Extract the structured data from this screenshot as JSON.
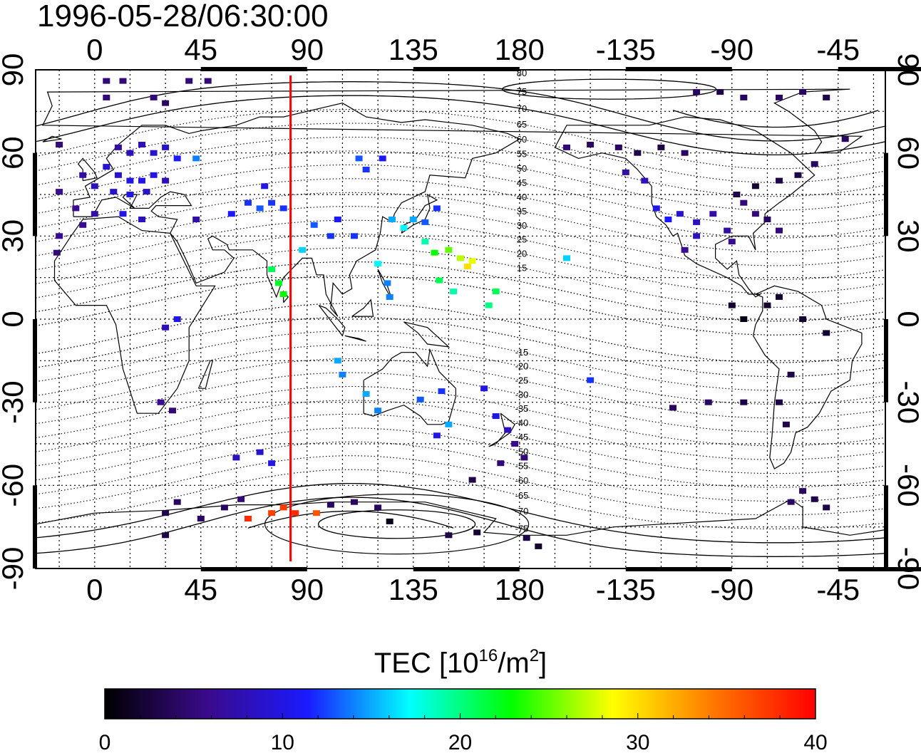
{
  "title": "1996-05-28/06:30:00",
  "colorbar": {
    "title_text": "TEC  [10",
    "title_sup1": "16",
    "title_mid": "/m",
    "title_sup2": "2",
    "title_end": "]",
    "min": 0,
    "max": 40,
    "ticks": [
      "0",
      "10",
      "20",
      "30",
      "40"
    ],
    "stops": [
      "#000000",
      "#3a0a8a",
      "#1a1aff",
      "#00ffff",
      "#00ff00",
      "#ffff00",
      "#ff7700",
      "#ff0000"
    ]
  },
  "map": {
    "lon_ticks_top": [
      "0",
      "45",
      "90",
      "135",
      "180",
      "-135",
      "-90",
      "-45"
    ],
    "lon_ticks_bottom": [
      "0",
      "45",
      "90",
      "135",
      "180",
      "-135",
      "-90",
      "-45"
    ],
    "lat_ticks_left": [
      "90",
      "60",
      "30",
      "0",
      "-30",
      "-60",
      "-90"
    ],
    "lat_ticks_right": [
      "90",
      "60",
      "30",
      "0",
      "-30",
      "-60",
      "-90"
    ],
    "marker_longitude": 83,
    "marker_color": "#ff0000",
    "magnetic_latitude_labels": [
      "80",
      "75",
      "70",
      "65",
      "60",
      "55",
      "50",
      "45",
      "40",
      "35",
      "30",
      "25",
      "20",
      "15",
      "-15",
      "-20",
      "-25",
      "-30",
      "-35",
      "-40",
      "-45",
      "-50",
      "-55",
      "-60",
      "-65",
      "-70",
      "-75"
    ]
  },
  "chart_data": {
    "type": "scatter",
    "title": "1996-05-28/06:30:00",
    "xlabel": "",
    "ylabel": "",
    "xlim": [
      -25,
      335
    ],
    "ylim": [
      -90,
      90
    ],
    "colorbar_label": "TEC [10^16/m^2]",
    "colorbar_range": [
      0,
      40
    ],
    "points": [
      {
        "lon": 5,
        "lat": 86,
        "tec": 5
      },
      {
        "lon": 12,
        "lat": 86,
        "tec": 5
      },
      {
        "lon": 40,
        "lat": 86,
        "tec": 5
      },
      {
        "lon": 48,
        "lat": 86,
        "tec": 5
      },
      {
        "lon": 5,
        "lat": 80,
        "tec": 5
      },
      {
        "lon": 25,
        "lat": 80,
        "tec": 5
      },
      {
        "lon": 30,
        "lat": 78,
        "tec": 4
      },
      {
        "lon": -15,
        "lat": 63,
        "tec": 5
      },
      {
        "lon": 10,
        "lat": 62,
        "tec": 7
      },
      {
        "lon": 15,
        "lat": 60,
        "tec": 8
      },
      {
        "lon": 20,
        "lat": 63,
        "tec": 8
      },
      {
        "lon": 25,
        "lat": 60,
        "tec": 9
      },
      {
        "lon": 30,
        "lat": 62,
        "tec": 9
      },
      {
        "lon": 35,
        "lat": 58,
        "tec": 11
      },
      {
        "lon": 43,
        "lat": 58,
        "tec": 14
      },
      {
        "lon": 5,
        "lat": 55,
        "tec": 9
      },
      {
        "lon": 10,
        "lat": 52,
        "tec": 9
      },
      {
        "lon": 15,
        "lat": 50,
        "tec": 10
      },
      {
        "lon": 20,
        "lat": 50,
        "tec": 10
      },
      {
        "lon": 25,
        "lat": 52,
        "tec": 10
      },
      {
        "lon": 30,
        "lat": 50,
        "tec": 8
      },
      {
        "lon": -5,
        "lat": 52,
        "tec": 7
      },
      {
        "lon": 0,
        "lat": 48,
        "tec": 8
      },
      {
        "lon": 8,
        "lat": 46,
        "tec": 9
      },
      {
        "lon": 15,
        "lat": 45,
        "tec": 10
      },
      {
        "lon": 22,
        "lat": 46,
        "tec": 9
      },
      {
        "lon": -8,
        "lat": 40,
        "tec": 6
      },
      {
        "lon": 0,
        "lat": 38,
        "tec": 7
      },
      {
        "lon": 12,
        "lat": 38,
        "tec": 10
      },
      {
        "lon": 20,
        "lat": 36,
        "tec": 8
      },
      {
        "lon": -15,
        "lat": 30,
        "tec": 6
      },
      {
        "lon": -16,
        "lat": 24,
        "tec": 5
      },
      {
        "lon": -5,
        "lat": 34,
        "tec": 6
      },
      {
        "lon": 43,
        "lat": 36,
        "tec": 7
      },
      {
        "lon": 58,
        "lat": 38,
        "tec": 11
      },
      {
        "lon": 65,
        "lat": 42,
        "tec": 12
      },
      {
        "lon": 70,
        "lat": 40,
        "tec": 13
      },
      {
        "lon": 75,
        "lat": 42,
        "tec": 12
      },
      {
        "lon": 80,
        "lat": 40,
        "tec": 12
      },
      {
        "lon": 72,
        "lat": 48,
        "tec": 10
      },
      {
        "lon": 75,
        "lat": 18,
        "tec": 21
      },
      {
        "lon": 78,
        "lat": 13,
        "tec": 22
      },
      {
        "lon": 80,
        "lat": 9,
        "tec": 23
      },
      {
        "lon": 88,
        "lat": 25,
        "tec": 16
      },
      {
        "lon": 93,
        "lat": 34,
        "tec": 13
      },
      {
        "lon": 100,
        "lat": 30,
        "tec": 12
      },
      {
        "lon": 103,
        "lat": 36,
        "tec": 11
      },
      {
        "lon": 112,
        "lat": 58,
        "tec": 13
      },
      {
        "lon": 115,
        "lat": 54,
        "tec": 12
      },
      {
        "lon": 122,
        "lat": 58,
        "tec": 11
      },
      {
        "lon": 126,
        "lat": 36,
        "tec": 15
      },
      {
        "lon": 131,
        "lat": 33,
        "tec": 17
      },
      {
        "lon": 135,
        "lat": 36,
        "tec": 15
      },
      {
        "lon": 140,
        "lat": 35,
        "tec": 13
      },
      {
        "lon": 145,
        "lat": 40,
        "tec": 12
      },
      {
        "lon": 140,
        "lat": 28,
        "tec": 19
      },
      {
        "lon": 144,
        "lat": 24,
        "tec": 23
      },
      {
        "lon": 150,
        "lat": 25,
        "tec": 25
      },
      {
        "lon": 155,
        "lat": 22,
        "tec": 27
      },
      {
        "lon": 158,
        "lat": 19,
        "tec": 30
      },
      {
        "lon": 160,
        "lat": 21,
        "tec": 28
      },
      {
        "lon": 146,
        "lat": 14,
        "tec": 21
      },
      {
        "lon": 152,
        "lat": 10,
        "tec": 19
      },
      {
        "lon": 170,
        "lat": 10,
        "tec": 21
      },
      {
        "lon": 167,
        "lat": 5,
        "tec": 20
      },
      {
        "lon": 120,
        "lat": 20,
        "tec": 17
      },
      {
        "lon": 124,
        "lat": 13,
        "tec": 14
      },
      {
        "lon": 125,
        "lat": 8,
        "tec": 14
      },
      {
        "lon": 110,
        "lat": 30,
        "tec": 12
      },
      {
        "lon": 103,
        "lat": -15,
        "tec": 15
      },
      {
        "lon": 105,
        "lat": -20,
        "tec": 14
      },
      {
        "lon": 115,
        "lat": -27,
        "tec": 15
      },
      {
        "lon": 120,
        "lat": -33,
        "tec": 14
      },
      {
        "lon": 138,
        "lat": -29,
        "tec": 13
      },
      {
        "lon": 147,
        "lat": -26,
        "tec": 12
      },
      {
        "lon": 150,
        "lat": -38,
        "tec": 15
      },
      {
        "lon": 145,
        "lat": -42,
        "tec": 10
      },
      {
        "lon": 165,
        "lat": -25,
        "tec": 10
      },
      {
        "lon": 170,
        "lat": -35,
        "tec": 10
      },
      {
        "lon": 175,
        "lat": -40,
        "tec": 8
      },
      {
        "lon": 178,
        "lat": -45,
        "tec": 6
      },
      {
        "lon": 182,
        "lat": -50,
        "tec": 5
      },
      {
        "lon": 172,
        "lat": -52,
        "tec": 5
      },
      {
        "lon": 160,
        "lat": -58,
        "tec": 3
      },
      {
        "lon": 210,
        "lat": -22,
        "tec": 12
      },
      {
        "lon": 200,
        "lat": 22,
        "tec": 16
      },
      {
        "lon": 35,
        "lat": 0,
        "tec": 10
      },
      {
        "lon": 30,
        "lat": -3,
        "tec": 8
      },
      {
        "lon": 28,
        "lat": -30,
        "tec": 6
      },
      {
        "lon": 33,
        "lat": -33,
        "tec": 5
      },
      {
        "lon": 60,
        "lat": -50,
        "tec": 8
      },
      {
        "lon": 70,
        "lat": -48,
        "tec": 9
      },
      {
        "lon": 75,
        "lat": -52,
        "tec": 10
      },
      {
        "lon": 65,
        "lat": -72,
        "tec": 38
      },
      {
        "lon": 75,
        "lat": -70,
        "tec": 37
      },
      {
        "lon": 80,
        "lat": -68,
        "tec": 37
      },
      {
        "lon": 85,
        "lat": -70,
        "tec": 38
      },
      {
        "lon": 94,
        "lat": -70,
        "tec": 36
      },
      {
        "lon": 110,
        "lat": -66,
        "tec": 4
      },
      {
        "lon": 120,
        "lat": -68,
        "tec": 4
      },
      {
        "lon": 125,
        "lat": -73,
        "tec": 1
      },
      {
        "lon": 150,
        "lat": -78,
        "tec": 3
      },
      {
        "lon": 162,
        "lat": -77,
        "tec": 2
      },
      {
        "lon": 183,
        "lat": -79,
        "tec": 3
      },
      {
        "lon": 188,
        "lat": -82,
        "tec": 2
      },
      {
        "lon": 35,
        "lat": -66,
        "tec": 4
      },
      {
        "lon": 30,
        "lat": -70,
        "tec": 3
      },
      {
        "lon": 45,
        "lat": -72,
        "tec": 4
      },
      {
        "lon": 55,
        "lat": -68,
        "tec": 4
      },
      {
        "lon": 30,
        "lat": -78,
        "tec": 3
      },
      {
        "lon": 62,
        "lat": -65,
        "tec": 5
      },
      {
        "lon": 225,
        "lat": 53,
        "tec": 7
      },
      {
        "lon": 233,
        "lat": 50,
        "tec": 8
      },
      {
        "lon": 238,
        "lat": 40,
        "tec": 10
      },
      {
        "lon": 243,
        "lat": 36,
        "tec": 11
      },
      {
        "lon": 248,
        "lat": 38,
        "tec": 9
      },
      {
        "lon": 255,
        "lat": 35,
        "tec": 8
      },
      {
        "lon": 262,
        "lat": 38,
        "tec": 7
      },
      {
        "lon": 268,
        "lat": 32,
        "tec": 7
      },
      {
        "lon": 255,
        "lat": 30,
        "tec": 8
      },
      {
        "lon": 250,
        "lat": 25,
        "tec": 6
      },
      {
        "lon": 275,
        "lat": 42,
        "tec": 5
      },
      {
        "lon": 280,
        "lat": 38,
        "tec": 5
      },
      {
        "lon": 285,
        "lat": 36,
        "tec": 4
      },
      {
        "lon": 290,
        "lat": 32,
        "tec": 5
      },
      {
        "lon": 270,
        "lat": 28,
        "tec": 6
      },
      {
        "lon": 272,
        "lat": 45,
        "tec": 3
      },
      {
        "lon": 280,
        "lat": 48,
        "tec": 2
      },
      {
        "lon": 290,
        "lat": 50,
        "tec": 3
      },
      {
        "lon": 298,
        "lat": 52,
        "tec": 3
      },
      {
        "lon": 305,
        "lat": 56,
        "tec": 4
      },
      {
        "lon": 200,
        "lat": 62,
        "tec": 5
      },
      {
        "lon": 210,
        "lat": 63,
        "tec": 4
      },
      {
        "lon": 222,
        "lat": 62,
        "tec": 4
      },
      {
        "lon": 230,
        "lat": 60,
        "tec": 3
      },
      {
        "lon": 240,
        "lat": 62,
        "tec": 3
      },
      {
        "lon": 250,
        "lat": 60,
        "tec": 4
      },
      {
        "lon": 255,
        "lat": 82,
        "tec": 4
      },
      {
        "lon": 265,
        "lat": 82,
        "tec": 3
      },
      {
        "lon": 275,
        "lat": 80,
        "tec": 4
      },
      {
        "lon": 290,
        "lat": 80,
        "tec": 4
      },
      {
        "lon": 300,
        "lat": 82,
        "tec": 4
      },
      {
        "lon": 310,
        "lat": 80,
        "tec": 3
      },
      {
        "lon": 318,
        "lat": 65,
        "tec": 4
      },
      {
        "lon": 270,
        "lat": 5,
        "tec": 2
      },
      {
        "lon": 275,
        "lat": 0,
        "tec": 1
      },
      {
        "lon": 285,
        "lat": 5,
        "tec": 2
      },
      {
        "lon": 290,
        "lat": 8,
        "tec": 2
      },
      {
        "lon": 300,
        "lat": 0,
        "tec": 2
      },
      {
        "lon": 310,
        "lat": -5,
        "tec": 2
      },
      {
        "lon": 295,
        "lat": -20,
        "tec": 3
      },
      {
        "lon": 290,
        "lat": -30,
        "tec": 3
      },
      {
        "lon": 293,
        "lat": -38,
        "tec": 3
      },
      {
        "lon": 260,
        "lat": -30,
        "tec": 4
      },
      {
        "lon": 245,
        "lat": -32,
        "tec": 4
      },
      {
        "lon": 275,
        "lat": -30,
        "tec": 3
      },
      {
        "lon": 300,
        "lat": -62,
        "tec": 4
      },
      {
        "lon": 305,
        "lat": -65,
        "tec": 3
      },
      {
        "lon": 310,
        "lat": -68,
        "tec": 3
      },
      {
        "lon": 295,
        "lat": -66,
        "tec": 4
      },
      {
        "lon": 100,
        "lat": -67,
        "tec": 4
      },
      {
        "lon": -15,
        "lat": 46,
        "tec": 6
      }
    ]
  }
}
